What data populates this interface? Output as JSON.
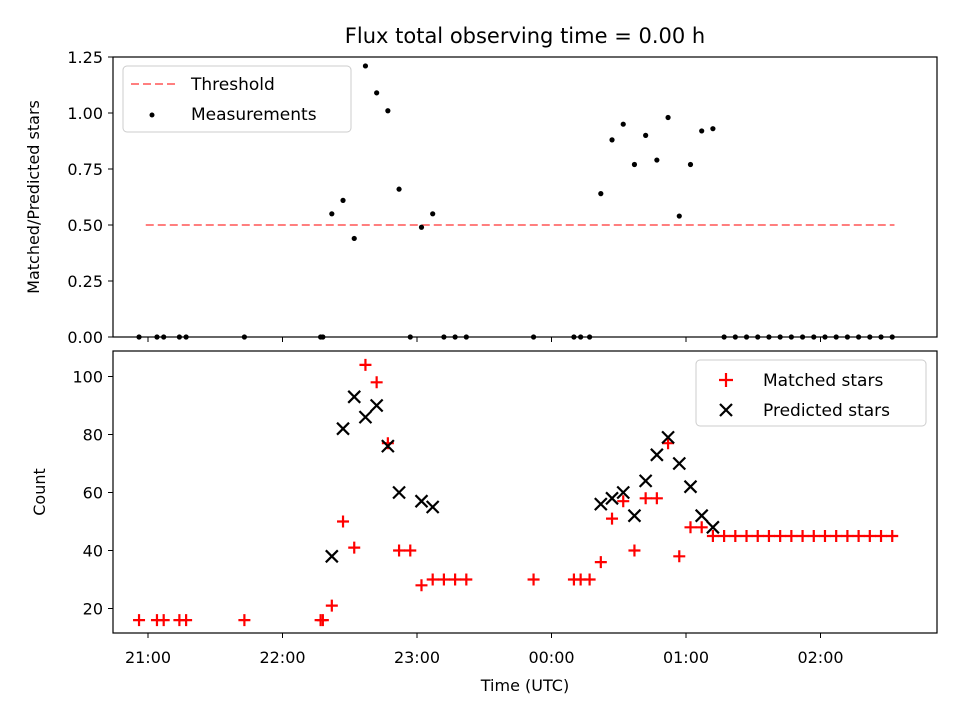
{
  "chart_data": [
    {
      "type": "scatter",
      "title": "Flux total observing time = 0.00 h",
      "ylabel": "Matched/Predicted stars",
      "xlabel": "",
      "ylim": [
        0,
        1.25
      ],
      "yticks": [
        "0.00",
        "0.25",
        "0.50",
        "0.75",
        "1.00",
        "1.25"
      ],
      "grid": false,
      "legend": "top-left",
      "threshold": {
        "name": "Threshold",
        "value": 0.5,
        "x": [
          "20:59",
          "02:33"
        ],
        "color": "#ff7f7f"
      },
      "series": [
        {
          "name": "Measurements",
          "color": "#000000",
          "points": [
            [
              "20:56",
              0
            ],
            [
              "21:04",
              0
            ],
            [
              "21:07",
              0
            ],
            [
              "21:14",
              0
            ],
            [
              "21:17",
              0
            ],
            [
              "21:43",
              0
            ],
            [
              "22:17",
              0
            ],
            [
              "22:18",
              0
            ],
            [
              "22:22",
              0.55
            ],
            [
              "22:27",
              0.61
            ],
            [
              "22:32",
              0.44
            ],
            [
              "22:37",
              1.21
            ],
            [
              "22:42",
              1.09
            ],
            [
              "22:47",
              1.01
            ],
            [
              "22:52",
              0.66
            ],
            [
              "22:57",
              0
            ],
            [
              "23:02",
              0.49
            ],
            [
              "23:07",
              0.55
            ],
            [
              "23:12",
              0
            ],
            [
              "23:17",
              0
            ],
            [
              "23:22",
              0
            ],
            [
              "23:52",
              0
            ],
            [
              "00:10",
              0
            ],
            [
              "00:13",
              0
            ],
            [
              "00:17",
              0
            ],
            [
              "00:22",
              0.64
            ],
            [
              "00:27",
              0.88
            ],
            [
              "00:32",
              0.95
            ],
            [
              "00:37",
              0.77
            ],
            [
              "00:42",
              0.9
            ],
            [
              "00:47",
              0.79
            ],
            [
              "00:52",
              0.98
            ],
            [
              "00:57",
              0.54
            ],
            [
              "01:02",
              0.77
            ],
            [
              "01:07",
              0.92
            ],
            [
              "01:12",
              0.93
            ],
            [
              "01:17",
              0
            ],
            [
              "01:22",
              0
            ],
            [
              "01:27",
              0
            ],
            [
              "01:32",
              0
            ],
            [
              "01:37",
              0
            ],
            [
              "01:42",
              0
            ],
            [
              "01:47",
              0
            ],
            [
              "01:52",
              0
            ],
            [
              "01:57",
              0
            ],
            [
              "02:02",
              0
            ],
            [
              "02:07",
              0
            ],
            [
              "02:12",
              0
            ],
            [
              "02:17",
              0
            ],
            [
              "02:22",
              0
            ],
            [
              "02:27",
              0
            ],
            [
              "02:32",
              0
            ]
          ]
        }
      ]
    },
    {
      "type": "scatter",
      "xlabel": "Time (UTC)",
      "ylabel": "Count",
      "xticks": [
        "21:00",
        "22:00",
        "23:00",
        "00:00",
        "01:00",
        "02:00"
      ],
      "yticks": [
        "20",
        "40",
        "60",
        "80",
        "100"
      ],
      "ylim": [
        12,
        110
      ],
      "grid": false,
      "legend": "top-right",
      "series": [
        {
          "name": "Matched stars",
          "color": "#ff0000",
          "marker": "plus",
          "points": [
            [
              "20:56",
              16
            ],
            [
              "21:04",
              16
            ],
            [
              "21:07",
              16
            ],
            [
              "21:14",
              16
            ],
            [
              "21:17",
              16
            ],
            [
              "21:43",
              16
            ],
            [
              "22:17",
              16
            ],
            [
              "22:18",
              16
            ],
            [
              "22:22",
              21
            ],
            [
              "22:27",
              50
            ],
            [
              "22:32",
              41
            ],
            [
              "22:37",
              104
            ],
            [
              "22:42",
              98
            ],
            [
              "22:47",
              77
            ],
            [
              "22:52",
              40
            ],
            [
              "22:57",
              40
            ],
            [
              "23:02",
              28
            ],
            [
              "23:07",
              30
            ],
            [
              "23:12",
              30
            ],
            [
              "23:17",
              30
            ],
            [
              "23:22",
              30
            ],
            [
              "23:52",
              30
            ],
            [
              "00:10",
              30
            ],
            [
              "00:13",
              30
            ],
            [
              "00:17",
              30
            ],
            [
              "00:22",
              36
            ],
            [
              "00:27",
              51
            ],
            [
              "00:32",
              57
            ],
            [
              "00:37",
              40
            ],
            [
              "00:42",
              58
            ],
            [
              "00:47",
              58
            ],
            [
              "00:52",
              77
            ],
            [
              "00:57",
              38
            ],
            [
              "01:02",
              48
            ],
            [
              "01:07",
              48
            ],
            [
              "01:12",
              45
            ],
            [
              "01:17",
              45
            ],
            [
              "01:22",
              45
            ],
            [
              "01:27",
              45
            ],
            [
              "01:32",
              45
            ],
            [
              "01:37",
              45
            ],
            [
              "01:42",
              45
            ],
            [
              "01:47",
              45
            ],
            [
              "01:52",
              45
            ],
            [
              "01:57",
              45
            ],
            [
              "02:02",
              45
            ],
            [
              "02:07",
              45
            ],
            [
              "02:12",
              45
            ],
            [
              "02:17",
              45
            ],
            [
              "02:22",
              45
            ],
            [
              "02:27",
              45
            ],
            [
              "02:32",
              45
            ]
          ]
        },
        {
          "name": "Predicted stars",
          "color": "#000000",
          "marker": "x",
          "points": [
            [
              "22:22",
              38
            ],
            [
              "22:27",
              82
            ],
            [
              "22:32",
              93
            ],
            [
              "22:37",
              86
            ],
            [
              "22:42",
              90
            ],
            [
              "22:47",
              76
            ],
            [
              "22:52",
              60
            ],
            [
              "23:02",
              57
            ],
            [
              "23:07",
              55
            ],
            [
              "00:22",
              56
            ],
            [
              "00:27",
              58
            ],
            [
              "00:32",
              60
            ],
            [
              "00:37",
              52
            ],
            [
              "00:42",
              64
            ],
            [
              "00:47",
              73
            ],
            [
              "00:52",
              79
            ],
            [
              "00:57",
              70
            ],
            [
              "01:02",
              62
            ],
            [
              "01:07",
              52
            ],
            [
              "01:12",
              48
            ]
          ]
        }
      ]
    }
  ]
}
